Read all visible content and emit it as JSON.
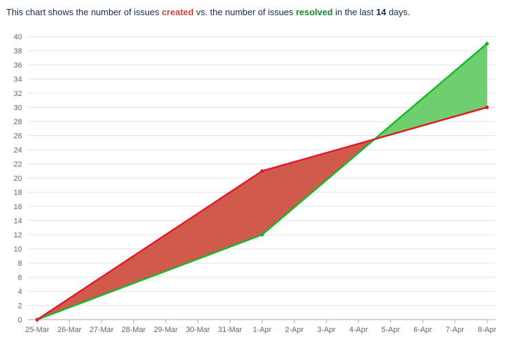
{
  "caption": {
    "prefix": "This chart shows the number of issues",
    "created": "created",
    "middle": "vs. the number of issues",
    "resolved": "resolved",
    "suffix_before": "in the last",
    "days": "14",
    "suffix_after": "days."
  },
  "chart_data": {
    "type": "area",
    "x": [
      "25-Mar",
      "26-Mar",
      "27-Mar",
      "28-Mar",
      "29-Mar",
      "30-Mar",
      "31-Mar",
      "1-Apr",
      "2-Apr",
      "3-Apr",
      "4-Apr",
      "5-Apr",
      "6-Apr",
      "7-Apr",
      "8-Apr"
    ],
    "series": [
      {
        "name": "created",
        "color": "#e3192b",
        "points": [
          {
            "x": "25-Mar",
            "y": 0
          },
          {
            "x": "1-Apr",
            "y": 21
          },
          {
            "x": "8-Apr",
            "y": 30
          }
        ]
      },
      {
        "name": "resolved",
        "color": "#14b82c",
        "points": [
          {
            "x": "25-Mar",
            "y": 0
          },
          {
            "x": "1-Apr",
            "y": 12
          },
          {
            "x": "8-Apr",
            "y": 39
          }
        ]
      }
    ],
    "fill_created_ahead": "#d05b4c",
    "fill_resolved_ahead": "#6fcf6e",
    "ylim": [
      0,
      40
    ],
    "yticks": [
      0,
      2,
      4,
      6,
      8,
      10,
      12,
      14,
      16,
      18,
      20,
      22,
      24,
      26,
      28,
      30,
      32,
      34,
      36,
      38,
      40
    ],
    "grid": true,
    "xlabel": "",
    "ylabel": ""
  }
}
